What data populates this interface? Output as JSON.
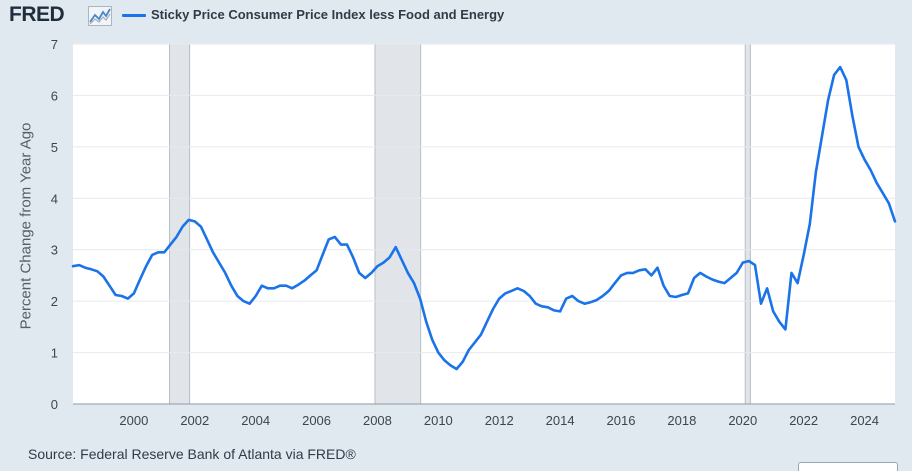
{
  "header": {
    "logo_text": "FRED",
    "logo_icon": "fred-chart-icon",
    "legend_label": "Sticky Price Consumer Price Index less Food and Energy",
    "series_color": "#1a73e8"
  },
  "source_text": "Source: Federal Reserve Bank of Atlanta via FRED®",
  "chart_data": {
    "type": "line",
    "title": "Sticky Price Consumer Price Index less Food and Energy",
    "xlabel": "",
    "ylabel": "Percent Change from Year Ago",
    "xlim": [
      1998.0,
      2025.0
    ],
    "ylim": [
      0,
      7
    ],
    "xticks": [
      2000,
      2002,
      2004,
      2006,
      2008,
      2010,
      2012,
      2014,
      2016,
      2018,
      2020,
      2022,
      2024
    ],
    "yticks": [
      0,
      1,
      2,
      3,
      4,
      5,
      6,
      7
    ],
    "grid": "horizontal",
    "recessions": [
      {
        "start": 2001.17,
        "end": 2001.83
      },
      {
        "start": 2007.92,
        "end": 2009.42
      },
      {
        "start": 2020.08,
        "end": 2020.25
      }
    ],
    "series": [
      {
        "name": "Sticky Price Consumer Price Index less Food and Energy",
        "x": [
          1998.0,
          1998.2,
          1998.4,
          1998.6,
          1998.8,
          1999.0,
          1999.2,
          1999.4,
          1999.6,
          1999.8,
          2000.0,
          2000.2,
          2000.4,
          2000.6,
          2000.8,
          2001.0,
          2001.2,
          2001.4,
          2001.6,
          2001.8,
          2002.0,
          2002.2,
          2002.4,
          2002.6,
          2002.8,
          2003.0,
          2003.2,
          2003.4,
          2003.6,
          2003.8,
          2004.0,
          2004.2,
          2004.4,
          2004.6,
          2004.8,
          2005.0,
          2005.2,
          2005.4,
          2005.6,
          2005.8,
          2006.0,
          2006.2,
          2006.4,
          2006.6,
          2006.8,
          2007.0,
          2007.2,
          2007.4,
          2007.6,
          2007.8,
          2008.0,
          2008.2,
          2008.4,
          2008.6,
          2008.8,
          2009.0,
          2009.2,
          2009.4,
          2009.6,
          2009.8,
          2010.0,
          2010.2,
          2010.4,
          2010.6,
          2010.8,
          2011.0,
          2011.2,
          2011.4,
          2011.6,
          2011.8,
          2012.0,
          2012.2,
          2012.4,
          2012.6,
          2012.8,
          2013.0,
          2013.2,
          2013.4,
          2013.6,
          2013.8,
          2014.0,
          2014.2,
          2014.4,
          2014.6,
          2014.8,
          2015.0,
          2015.2,
          2015.4,
          2015.6,
          2015.8,
          2016.0,
          2016.2,
          2016.4,
          2016.6,
          2016.8,
          2017.0,
          2017.2,
          2017.4,
          2017.6,
          2017.8,
          2018.0,
          2018.2,
          2018.4,
          2018.6,
          2018.8,
          2019.0,
          2019.2,
          2019.4,
          2019.6,
          2019.8,
          2020.0,
          2020.2,
          2020.4,
          2020.6,
          2020.8,
          2021.0,
          2021.2,
          2021.4,
          2021.6,
          2021.8,
          2022.0,
          2022.2,
          2022.4,
          2022.6,
          2022.8,
          2023.0,
          2023.2,
          2023.4,
          2023.6,
          2023.8,
          2024.0,
          2024.2,
          2024.4,
          2024.6,
          2024.8,
          2025.0
        ],
        "values": [
          2.68,
          2.7,
          2.65,
          2.62,
          2.58,
          2.48,
          2.3,
          2.12,
          2.1,
          2.05,
          2.15,
          2.42,
          2.68,
          2.9,
          2.95,
          2.95,
          3.1,
          3.25,
          3.45,
          3.58,
          3.55,
          3.45,
          3.2,
          2.95,
          2.75,
          2.55,
          2.3,
          2.1,
          2.0,
          1.95,
          2.1,
          2.3,
          2.25,
          2.25,
          2.3,
          2.3,
          2.25,
          2.32,
          2.4,
          2.5,
          2.6,
          2.9,
          3.2,
          3.25,
          3.1,
          3.1,
          2.85,
          2.55,
          2.45,
          2.55,
          2.68,
          2.75,
          2.85,
          3.05,
          2.8,
          2.55,
          2.35,
          2.05,
          1.6,
          1.25,
          1.0,
          0.85,
          0.75,
          0.68,
          0.82,
          1.05,
          1.2,
          1.35,
          1.6,
          1.85,
          2.05,
          2.15,
          2.2,
          2.25,
          2.2,
          2.1,
          1.95,
          1.9,
          1.88,
          1.82,
          1.8,
          2.05,
          2.1,
          2.0,
          1.95,
          1.98,
          2.02,
          2.1,
          2.2,
          2.35,
          2.5,
          2.55,
          2.55,
          2.6,
          2.62,
          2.5,
          2.65,
          2.3,
          2.1,
          2.08,
          2.12,
          2.15,
          2.45,
          2.55,
          2.48,
          2.42,
          2.38,
          2.35,
          2.45,
          2.55,
          2.75,
          2.78,
          2.7,
          1.95,
          2.25,
          1.8,
          1.6,
          1.45,
          2.55,
          2.35,
          2.9,
          3.5,
          4.5,
          5.2,
          5.9,
          6.4,
          6.55,
          6.3,
          5.6,
          5.0,
          4.75,
          4.55,
          4.3,
          4.1,
          3.9,
          3.55
        ]
      }
    ]
  }
}
